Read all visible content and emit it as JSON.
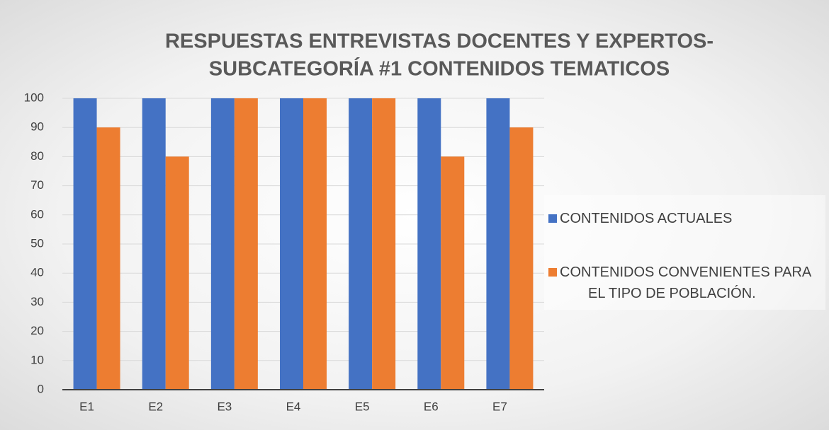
{
  "chart_data": {
    "type": "bar",
    "title": [
      "RESPUESTAS ENTREVISTAS DOCENTES Y EXPERTOS-",
      "SUBCATEGORÍA #1 CONTENIDOS TEMATICOS"
    ],
    "categories": [
      "E1",
      "E2",
      "E3",
      "E4",
      "E5",
      "E6",
      "E7"
    ],
    "series": [
      {
        "name": "CONTENIDOS ACTUALES",
        "color": "#4472c4",
        "values": [
          100,
          100,
          100,
          100,
          100,
          100,
          100
        ]
      },
      {
        "name": "CONTENIDOS CONVENIENTES PARA EL TIPO DE POBLACIÓN.",
        "color": "#ed7d31",
        "values": [
          90,
          80,
          100,
          100,
          100,
          80,
          90
        ]
      }
    ],
    "ylim": [
      0,
      100
    ],
    "yticks": [
      0,
      10,
      20,
      30,
      40,
      50,
      60,
      70,
      80,
      90,
      100
    ],
    "grid": true,
    "legend": "right"
  }
}
